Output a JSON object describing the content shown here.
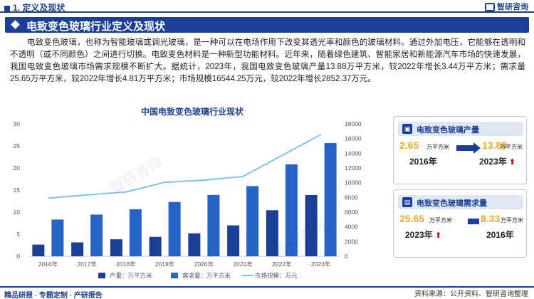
{
  "header": {
    "section": "1. 定义及现状",
    "logo_text": "智研咨询"
  },
  "banner": {
    "title": "电致变色玻璃行业定义及现状"
  },
  "paragraph": "电致变色玻璃，也称为智能玻璃或调光玻璃，是一种可以在电场作用下改变其透光率和颜色的玻璃材料。通过外加电压，它能够在透明和不透明（或不同颜色）之间进行切换。电致变色材料是一种新型功能材料。近年来，随着绿色建筑、智能家居和新能源汽车市场的快速发展，我国电致变色玻璃市场需求规模不断扩大。据统计，2023年，我国电致变色玻璃产量13.88万平方米，较2022年增长3.44万平方米；需求量25.65万平方米，较2022年增长4.81万平方米；市场规模16544.25万元，较2022年增长2852.37万元。",
  "chart_data": {
    "type": "bar",
    "title": "中国电致变色玻璃行业现状",
    "categories": [
      "2016年",
      "2017年",
      "2018年",
      "2019年",
      "2020年",
      "2021年",
      "2022年",
      "2023年"
    ],
    "y_left_ticks": [
      "0",
      "5",
      "10",
      "15",
      "20",
      "25",
      "30"
    ],
    "y_right_ticks": [
      "0",
      "2000",
      "4000",
      "6000",
      "8000",
      "10000",
      "12000",
      "14000",
      "16000",
      "18000"
    ],
    "ylim_left": [
      0,
      30
    ],
    "ylim_right": [
      0,
      18000
    ],
    "series": [
      {
        "name": "产量：万平方米",
        "type": "bar",
        "axis": "left",
        "color": "#1b3f99",
        "values": [
          2.65,
          3.15,
          3.85,
          4.4,
          5.2,
          7.0,
          10.44,
          13.88
        ]
      },
      {
        "name": "需求量：万平方米",
        "type": "bar",
        "axis": "left",
        "color": "#2563c9",
        "values": [
          8.33,
          9.45,
          10.65,
          12.3,
          13.9,
          15.9,
          20.84,
          25.65
        ]
      },
      {
        "name": "市场规模：万元",
        "type": "line",
        "axis": "right",
        "color": "#7ec3e8",
        "values": [
          7900,
          8350,
          8750,
          10050,
          10350,
          10850,
          13691.88,
          16544.25
        ]
      }
    ],
    "legend_position": "bottom"
  },
  "cards": [
    {
      "title": "电致变色玻璃产量",
      "left_value": "2.65",
      "left_unit": "万平方米",
      "left_year": "2016年",
      "right_value": "13.88",
      "right_unit": "万平方米",
      "right_year": "2023年",
      "trend": "⬆"
    },
    {
      "title": "电致变色玻璃需求量",
      "left_value": "25.65",
      "left_unit": "万平方米",
      "left_year": "2023年",
      "right_value": "8.33",
      "right_unit": "万平方米",
      "right_year": "2016年",
      "trend": "⬆"
    }
  ],
  "footer": {
    "left": "精品研报 · 专题定制 · 产研报告",
    "right": "资料来源：公开资料、智研咨询整理"
  },
  "colors": {
    "brand": "#1b3f99",
    "accent": "#f5a623",
    "up": "#d6001c"
  }
}
